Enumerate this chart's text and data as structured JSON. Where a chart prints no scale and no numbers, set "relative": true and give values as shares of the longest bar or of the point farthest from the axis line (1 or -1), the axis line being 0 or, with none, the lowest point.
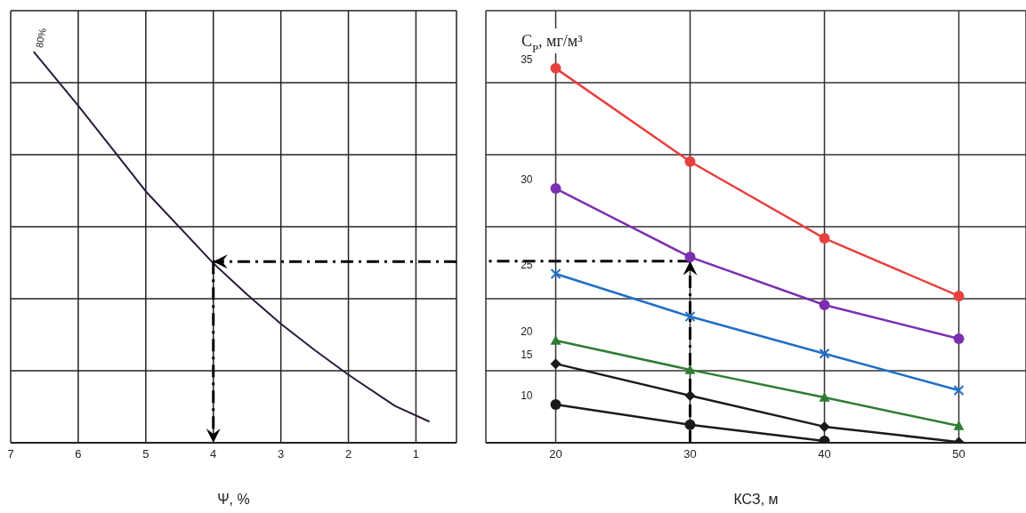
{
  "chart_data": [
    {
      "type": "line",
      "relative": true,
      "xlabel": "Ψ, %",
      "xlim": [
        7,
        0.4
      ],
      "xticks": [
        7,
        6,
        5,
        4,
        3,
        2,
        1
      ],
      "grid": true,
      "marker": "none",
      "series": [
        {
          "name": "80%",
          "color": "#2a1a3a",
          "x": [
            6.66,
            6,
            5.5,
            5,
            4,
            3.5,
            3,
            2.5,
            2,
            1.31,
            0.8
          ],
          "values": [
            1,
            0.862,
            0.753,
            0.643,
            0.459,
            0.379,
            0.304,
            0.237,
            0.174,
            0.094,
            0.054
          ]
        }
      ],
      "ref_lines": [
        {
          "axis": "x",
          "value": 4,
          "label": null,
          "color": "#000000",
          "line_style": "dashed"
        },
        {
          "axis": "y",
          "value": 0.463,
          "label": null,
          "color": "#000000",
          "line_style": "dashed"
        }
      ]
    },
    {
      "type": "line",
      "relative": true,
      "xlabel": "КСЗ, м",
      "ylabel": "C$_{P}$, мг/м³",
      "categories": [
        "20",
        "30",
        "40",
        "50"
      ],
      "grid": true,
      "series": [
        {
          "name": "35",
          "color": "#e8403f",
          "marker": "circle",
          "values": [
            1,
            0.751,
            0.546,
            0.392
          ]
        },
        {
          "name": "30",
          "color": "#7b2fb0",
          "marker": "circle",
          "values": [
            0.679,
            0.496,
            0.368,
            0.278
          ]
        },
        {
          "name": "25",
          "color": "#1f6fc6",
          "marker": "cross",
          "values": [
            0.451,
            0.337,
            0.238,
            0.14
          ]
        },
        {
          "name": "20",
          "color": "#2e7d32",
          "marker": "triangle",
          "values": [
            0.273,
            0.195,
            0.121,
            0.045
          ]
        },
        {
          "name": "15",
          "color": "#1a1a1a",
          "marker": "diamond",
          "values": [
            0.211,
            0.126,
            0.043,
            0.002
          ]
        },
        {
          "name": "10",
          "color": "#1a1a1a",
          "marker": "circle",
          "values": [
            0.102,
            0.048,
            0.005,
            null
          ]
        }
      ],
      "ref_lines": [
        {
          "axis": "x",
          "value": "30",
          "label": null,
          "color": "#000000",
          "line_style": "dashed"
        },
        {
          "axis": "y",
          "value": 0.485,
          "label": null,
          "color": "#000000",
          "line_style": "dashed"
        }
      ]
    }
  ]
}
